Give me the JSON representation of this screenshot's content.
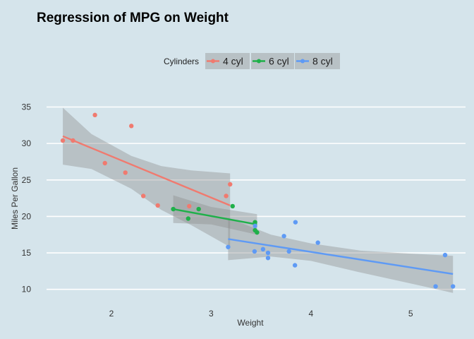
{
  "chart_data": {
    "type": "scatter",
    "title": "Regression of MPG on Weight",
    "xlabel": "Weight",
    "ylabel": "Miles Per Gallon",
    "xlim": [
      1.35,
      5.55
    ],
    "ylim": [
      9,
      36.5
    ],
    "x_ticks": [
      2,
      3,
      4,
      5
    ],
    "y_ticks": [
      10,
      15,
      20,
      25,
      30,
      35
    ],
    "grid": "horizontal",
    "legend": {
      "title": "Cylinders",
      "position": "top"
    },
    "background_color": "#d5e4eb",
    "band_color": "#8c8c8c",
    "series": [
      {
        "name": "4 cyl",
        "color": "#f07a6f",
        "points": [
          [
            1.513,
            30.4
          ],
          [
            1.615,
            30.4
          ],
          [
            1.835,
            33.9
          ],
          [
            1.935,
            27.3
          ],
          [
            2.14,
            26.0
          ],
          [
            2.2,
            32.4
          ],
          [
            2.32,
            22.8
          ],
          [
            2.465,
            21.5
          ],
          [
            2.78,
            21.4
          ],
          [
            3.15,
            22.8
          ],
          [
            3.19,
            24.4
          ]
        ],
        "fit": [
          [
            1.513,
            31.0
          ],
          [
            3.19,
            21.5
          ]
        ],
        "band_upper": [
          [
            1.513,
            34.9
          ],
          [
            1.8,
            31.3
          ],
          [
            2.2,
            28.3
          ],
          [
            2.5,
            26.9
          ],
          [
            2.8,
            26.3
          ],
          [
            3.19,
            25.9
          ]
        ],
        "band_lower": [
          [
            1.513,
            27.1
          ],
          [
            1.8,
            26.5
          ],
          [
            2.2,
            23.8
          ],
          [
            2.5,
            20.9
          ],
          [
            2.8,
            18.8
          ],
          [
            3.19,
            15.8
          ]
        ]
      },
      {
        "name": "6 cyl",
        "color": "#1fb04a",
        "points": [
          [
            2.62,
            21.0
          ],
          [
            2.77,
            19.7
          ],
          [
            2.875,
            21.0
          ],
          [
            3.215,
            21.4
          ],
          [
            3.44,
            18.1
          ],
          [
            3.44,
            19.2
          ],
          [
            3.46,
            17.8
          ]
        ],
        "fit": [
          [
            2.62,
            21.0
          ],
          [
            3.46,
            18.9
          ]
        ],
        "band_upper": [
          [
            2.62,
            22.9
          ],
          [
            3.0,
            21.3
          ],
          [
            3.46,
            20.3
          ]
        ],
        "band_lower": [
          [
            2.62,
            19.1
          ],
          [
            3.0,
            18.9
          ],
          [
            3.46,
            17.5
          ]
        ]
      },
      {
        "name": "8 cyl",
        "color": "#5e9af5",
        "points": [
          [
            3.17,
            15.8
          ],
          [
            3.435,
            15.2
          ],
          [
            3.44,
            18.7
          ],
          [
            3.52,
            15.5
          ],
          [
            3.57,
            15.0
          ],
          [
            3.57,
            14.3
          ],
          [
            3.73,
            17.3
          ],
          [
            3.78,
            15.2
          ],
          [
            3.84,
            13.3
          ],
          [
            3.845,
            19.2
          ],
          [
            4.07,
            16.4
          ],
          [
            5.25,
            10.4
          ],
          [
            5.345,
            14.7
          ],
          [
            5.424,
            10.4
          ]
        ],
        "fit": [
          [
            3.17,
            16.9
          ],
          [
            5.424,
            12.1
          ]
        ],
        "band_upper": [
          [
            3.17,
            19.8
          ],
          [
            3.6,
            17.5
          ],
          [
            4.0,
            16.3
          ],
          [
            4.5,
            15.3
          ],
          [
            5.0,
            14.9
          ],
          [
            5.424,
            14.6
          ]
        ],
        "band_lower": [
          [
            3.17,
            14.0
          ],
          [
            3.6,
            14.5
          ],
          [
            4.0,
            13.9
          ],
          [
            4.5,
            12.3
          ],
          [
            5.0,
            10.8
          ],
          [
            5.424,
            9.5
          ]
        ]
      }
    ]
  }
}
